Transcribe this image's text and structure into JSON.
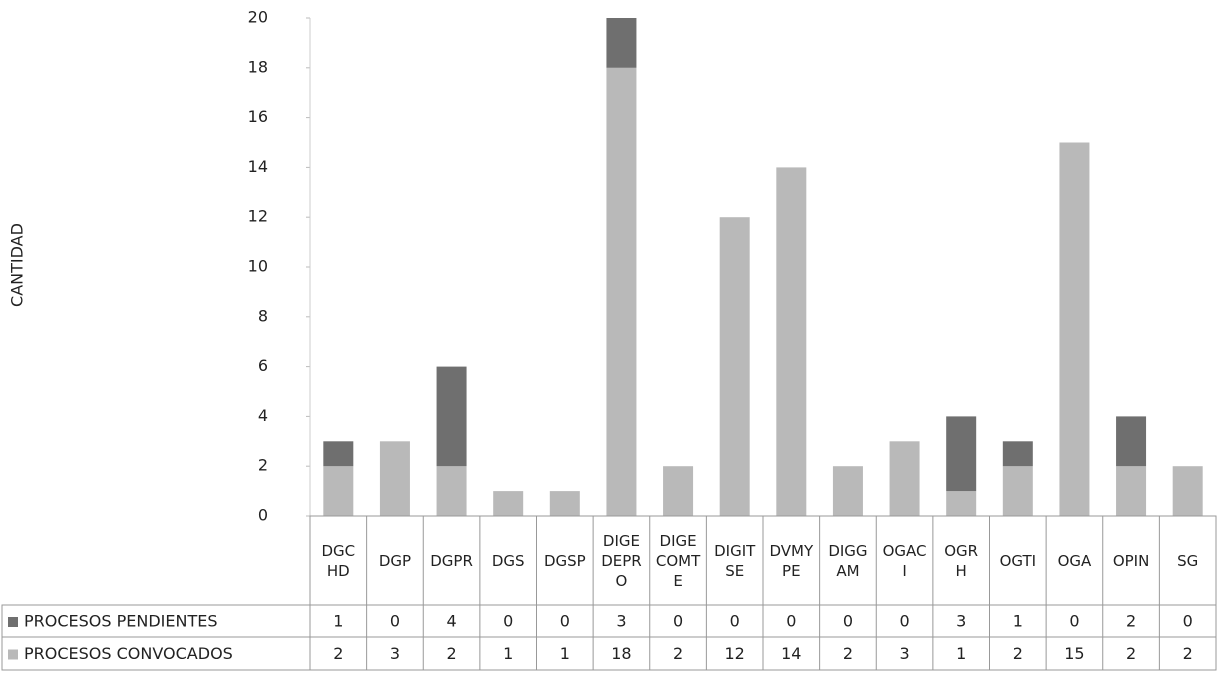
{
  "chart_data": {
    "type": "stacked_bar",
    "y_label": "CANTIDAD",
    "categories": [
      "DGCHD",
      "DGP",
      "DGPR",
      "DGS",
      "DGSP",
      "DIGEDEPRO",
      "DIGECOMTE",
      "DIGITSE",
      "DVMYPE",
      "DIGGAM",
      "OGACI",
      "OGRH",
      "OGTI",
      "OGA",
      "OPIN",
      "SG"
    ],
    "series": [
      {
        "name": "PROCESOS CONVOCADOS",
        "color": "#b9b9b9",
        "values": [
          2,
          3,
          2,
          1,
          1,
          18,
          2,
          12,
          14,
          2,
          3,
          1,
          2,
          15,
          2,
          2
        ]
      },
      {
        "name": "PROCESOS PENDIENTES",
        "color": "#6f6f6f",
        "values": [
          1,
          0,
          4,
          0,
          0,
          3,
          0,
          0,
          0,
          0,
          0,
          3,
          1,
          0,
          2,
          0
        ]
      }
    ],
    "ylim": [
      0,
      20
    ],
    "yticks": [
      0,
      2,
      4,
      6,
      8,
      10,
      12,
      14,
      16,
      18,
      20
    ],
    "grid": false
  }
}
